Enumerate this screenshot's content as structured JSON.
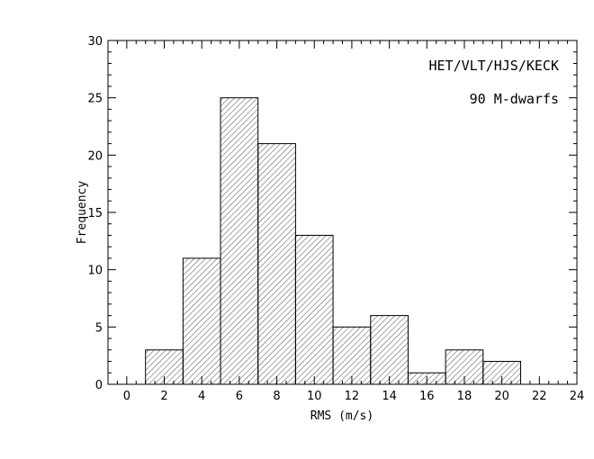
{
  "chart_data": {
    "type": "bar",
    "histogram": true,
    "bins": [
      {
        "x0": 1,
        "x1": 3,
        "value": 3
      },
      {
        "x0": 3,
        "x1": 5,
        "value": 11
      },
      {
        "x0": 5,
        "x1": 7,
        "value": 25
      },
      {
        "x0": 7,
        "x1": 9,
        "value": 21
      },
      {
        "x0": 9,
        "x1": 11,
        "value": 13
      },
      {
        "x0": 11,
        "x1": 13,
        "value": 5
      },
      {
        "x0": 13,
        "x1": 15,
        "value": 6
      },
      {
        "x0": 15,
        "x1": 17,
        "value": 1
      },
      {
        "x0": 17,
        "x1": 19,
        "value": 3
      },
      {
        "x0": 19,
        "x1": 21,
        "value": 2
      }
    ],
    "xlabel": "RMS (m/s)",
    "ylabel": "Frequency",
    "xlim": [
      -1,
      24
    ],
    "ylim": [
      0,
      30
    ],
    "xticks": [
      "0",
      "2",
      "4",
      "6",
      "8",
      "10",
      "12",
      "14",
      "16",
      "18",
      "20",
      "22",
      "24"
    ],
    "yticks": [
      "0",
      "5",
      "10",
      "15",
      "20",
      "25",
      "30"
    ],
    "annotations": [
      "HET/VLT/HJS/KECK",
      "90 M-dwarfs"
    ],
    "bar_fill": "hatched",
    "grid": false
  }
}
